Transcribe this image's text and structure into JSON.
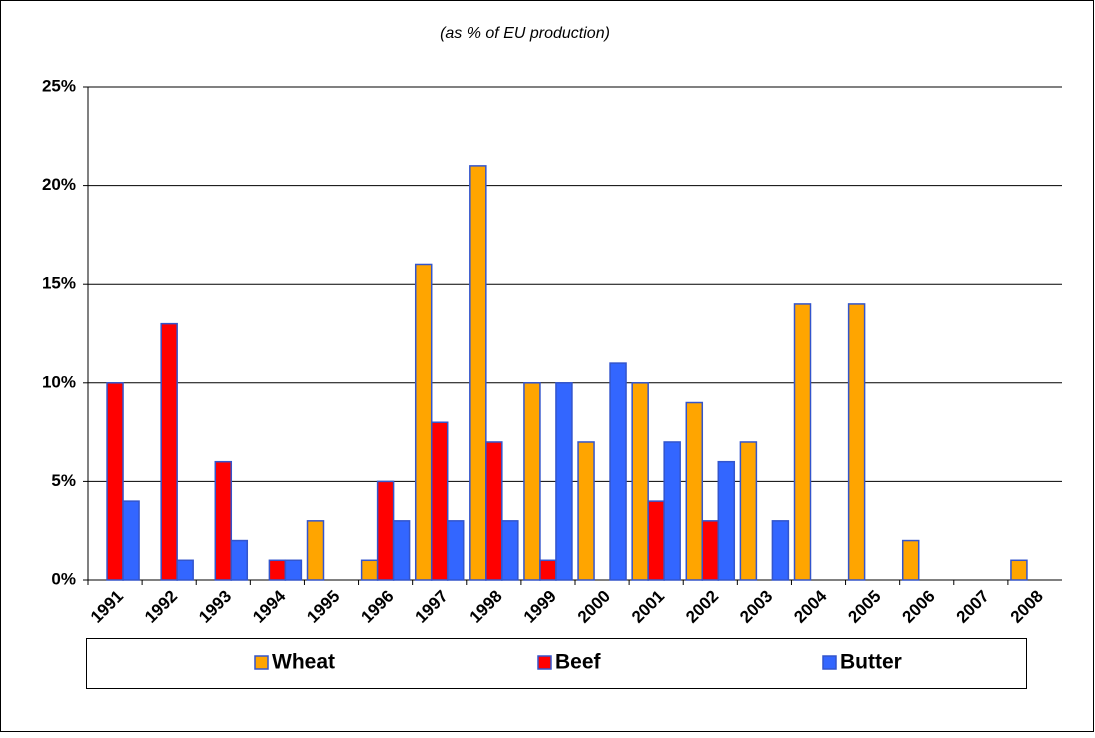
{
  "chart_data": {
    "type": "bar",
    "subtitle": "(as % of EU production)",
    "categories": [
      "1991",
      "1992",
      "1993",
      "1994",
      "1995",
      "1996",
      "1997",
      "1998",
      "1999",
      "2000",
      "2001",
      "2002",
      "2003",
      "2004",
      "2005",
      "2006",
      "2007",
      "2008"
    ],
    "series": [
      {
        "name": "Wheat",
        "color": "#ffa500",
        "values": [
          null,
          null,
          null,
          null,
          3,
          1,
          16,
          21,
          10,
          7,
          10,
          9,
          7,
          14,
          14,
          2,
          null,
          1
        ]
      },
      {
        "name": "Beef",
        "color": "#ff0000",
        "values": [
          10,
          13,
          6,
          1,
          null,
          5,
          8,
          7,
          1,
          null,
          4,
          3,
          null,
          null,
          null,
          null,
          null,
          null
        ]
      },
      {
        "name": "Butter",
        "color": "#3366ff",
        "values": [
          4,
          1,
          2,
          1,
          null,
          3,
          3,
          3,
          10,
          11,
          7,
          6,
          3,
          null,
          null,
          null,
          null,
          null
        ]
      }
    ],
    "ylim": [
      0,
      25
    ],
    "yticks": [
      {
        "value": 0,
        "label": "0%"
      },
      {
        "value": 5,
        "label": "5%"
      },
      {
        "value": 10,
        "label": "10%"
      },
      {
        "value": 15,
        "label": "15%"
      },
      {
        "value": 20,
        "label": "20%"
      },
      {
        "value": 25,
        "label": "25%"
      }
    ],
    "grid": true,
    "legend": "bottom"
  }
}
